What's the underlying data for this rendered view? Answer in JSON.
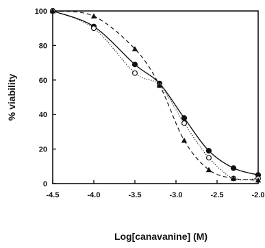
{
  "chart_data": {
    "type": "scatter",
    "title": "",
    "xlabel": "Log[canavanine] (M)",
    "ylabel": "% viability",
    "xlim": [
      -4.5,
      -2.0
    ],
    "ylim": [
      0,
      100
    ],
    "xticks": [
      -4.5,
      -4.0,
      -3.5,
      -3.0,
      -2.5,
      -2.0
    ],
    "xtick_labels": [
      "-4.5",
      "-4.0",
      "-3.5",
      "-3.0",
      "-2.5",
      "-2.0"
    ],
    "yticks": [
      0,
      20,
      40,
      60,
      80,
      100
    ],
    "ytick_labels": [
      "0",
      "20",
      "40",
      "60",
      "80",
      "100"
    ],
    "grid": false,
    "series": [
      {
        "marker": "filled-circle",
        "line_style": "solid",
        "color": "#111111",
        "x": [
          -4.5,
          -4.0,
          -3.5,
          -3.2,
          -2.9,
          -2.6,
          -2.3,
          -2.0
        ],
        "y": [
          100,
          91,
          69,
          58,
          38,
          19,
          9,
          5
        ]
      },
      {
        "marker": "open-circle",
        "line_style": "dotted",
        "color": "#111111",
        "x": [
          -4.5,
          -4.0,
          -3.5,
          -3.2,
          -2.9,
          -2.6,
          -2.3,
          -2.0
        ],
        "y": [
          100,
          90,
          64,
          57,
          35,
          15,
          3,
          3
        ]
      },
      {
        "marker": "filled-triangle",
        "line_style": "dashed",
        "color": "#111111",
        "x": [
          -4.5,
          -4.0,
          -3.5,
          -3.2,
          -2.9,
          -2.6,
          -2.3,
          -2.0
        ],
        "y": [
          100,
          97,
          78,
          57,
          25,
          8,
          3,
          2
        ]
      }
    ]
  }
}
